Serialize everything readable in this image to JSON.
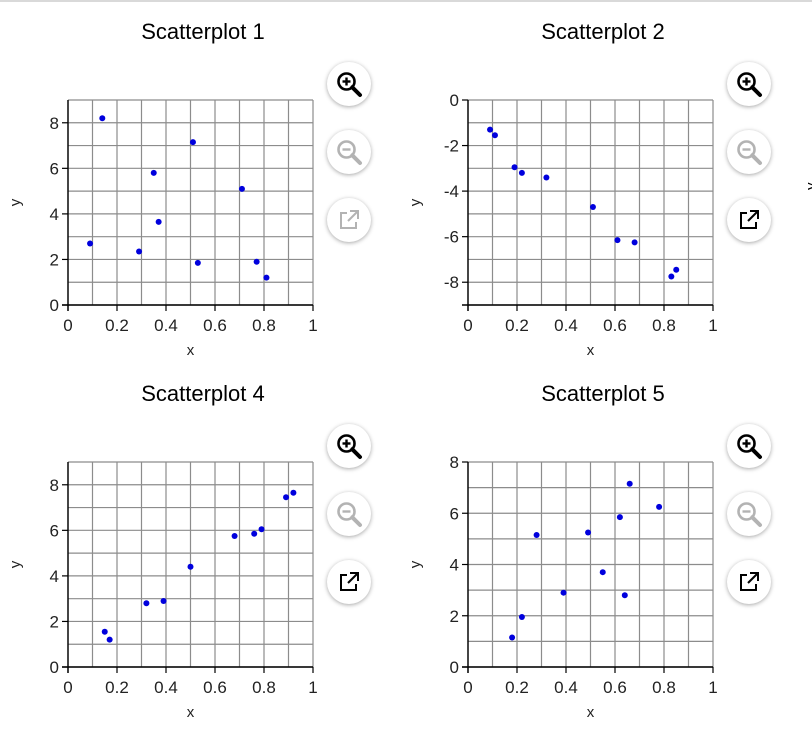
{
  "chart_data": [
    {
      "type": "scatter",
      "title": "Scatterplot 1",
      "xlabel": "x",
      "ylabel": "y",
      "xlim": [
        0,
        1
      ],
      "ylim": [
        0,
        9
      ],
      "grid": true,
      "xticks": [
        0,
        0.2,
        0.4,
        0.6,
        0.8,
        1
      ],
      "xtick_labels": [
        "0",
        "0.2",
        "0.4",
        "0.6",
        "0.8",
        "1"
      ],
      "yticks": [
        0,
        2,
        4,
        6,
        8
      ],
      "ytick_labels": [
        "0",
        "2",
        "4",
        "6",
        "8"
      ],
      "points": [
        [
          0.09,
          2.7
        ],
        [
          0.14,
          8.2
        ],
        [
          0.29,
          2.35
        ],
        [
          0.35,
          5.8
        ],
        [
          0.37,
          3.65
        ],
        [
          0.51,
          7.15
        ],
        [
          0.53,
          1.85
        ],
        [
          0.71,
          5.1
        ],
        [
          0.77,
          1.9
        ],
        [
          0.81,
          1.2
        ]
      ],
      "color": "#0000dd"
    },
    {
      "type": "scatter",
      "title": "Scatterplot 2",
      "xlabel": "x",
      "ylabel": "y",
      "xlim": [
        0,
        1
      ],
      "ylim": [
        -9,
        0
      ],
      "grid": true,
      "xticks": [
        0,
        0.2,
        0.4,
        0.6,
        0.8,
        1
      ],
      "xtick_labels": [
        "0",
        "0.2",
        "0.4",
        "0.6",
        "0.8",
        "1"
      ],
      "yticks": [
        0,
        -2,
        -4,
        -6,
        -8
      ],
      "ytick_labels": [
        "0",
        "-2",
        "-4",
        "-6",
        "-8"
      ],
      "points": [
        [
          0.09,
          -1.3
        ],
        [
          0.11,
          -1.55
        ],
        [
          0.19,
          -2.95
        ],
        [
          0.22,
          -3.2
        ],
        [
          0.32,
          -3.4
        ],
        [
          0.51,
          -4.7
        ],
        [
          0.61,
          -6.15
        ],
        [
          0.68,
          -6.25
        ],
        [
          0.83,
          -7.75
        ],
        [
          0.85,
          -7.45
        ]
      ],
      "color": "#0000dd"
    },
    {
      "type": "scatter",
      "title": "Scatterplot 4",
      "xlabel": "x",
      "ylabel": "y",
      "xlim": [
        0,
        1
      ],
      "ylim": [
        0,
        9
      ],
      "grid": true,
      "xticks": [
        0,
        0.2,
        0.4,
        0.6,
        0.8,
        1
      ],
      "xtick_labels": [
        "0",
        "0.2",
        "0.4",
        "0.6",
        "0.8",
        "1"
      ],
      "yticks": [
        0,
        2,
        4,
        6,
        8
      ],
      "ytick_labels": [
        "0",
        "2",
        "4",
        "6",
        "8"
      ],
      "points": [
        [
          0.15,
          1.55
        ],
        [
          0.17,
          1.2
        ],
        [
          0.32,
          2.8
        ],
        [
          0.39,
          2.9
        ],
        [
          0.5,
          4.4
        ],
        [
          0.68,
          5.75
        ],
        [
          0.76,
          5.85
        ],
        [
          0.79,
          6.05
        ],
        [
          0.89,
          7.45
        ],
        [
          0.92,
          7.65
        ]
      ],
      "color": "#0000dd"
    },
    {
      "type": "scatter",
      "title": "Scatterplot 5",
      "xlabel": "x",
      "ylabel": "y",
      "xlim": [
        0,
        1
      ],
      "ylim": [
        0,
        8
      ],
      "grid": true,
      "xticks": [
        0,
        0.2,
        0.4,
        0.6,
        0.8,
        1
      ],
      "xtick_labels": [
        "0",
        "0.2",
        "0.4",
        "0.6",
        "0.8",
        "1"
      ],
      "yticks": [
        0,
        2,
        4,
        6,
        8
      ],
      "ytick_labels": [
        "0",
        "2",
        "4",
        "6",
        "8"
      ],
      "points": [
        [
          0.18,
          1.15
        ],
        [
          0.22,
          1.95
        ],
        [
          0.28,
          5.15
        ],
        [
          0.39,
          2.9
        ],
        [
          0.49,
          5.25
        ],
        [
          0.55,
          3.7
        ],
        [
          0.62,
          5.85
        ],
        [
          0.64,
          2.8
        ],
        [
          0.66,
          7.15
        ],
        [
          0.78,
          6.25
        ]
      ],
      "color": "#0000dd"
    }
  ],
  "controls": {
    "zoom_in_icon": "zoom-in-icon",
    "zoom_out_icon": "zoom-out-icon",
    "popout_icon": "external-link-icon",
    "disabled_color": "#b3b3b3",
    "enabled_color": "#000000"
  },
  "panel_states": [
    {
      "zoom_out_enabled": false,
      "popout_enabled": false
    },
    {
      "zoom_out_enabled": false,
      "popout_enabled": true
    },
    {
      "zoom_out_enabled": false,
      "popout_enabled": true
    },
    {
      "zoom_out_enabled": false,
      "popout_enabled": true
    }
  ],
  "gridStyle": {
    "minor_color": "#8c8c8c",
    "axis_color": "#000000"
  },
  "edge_fragment": "y"
}
